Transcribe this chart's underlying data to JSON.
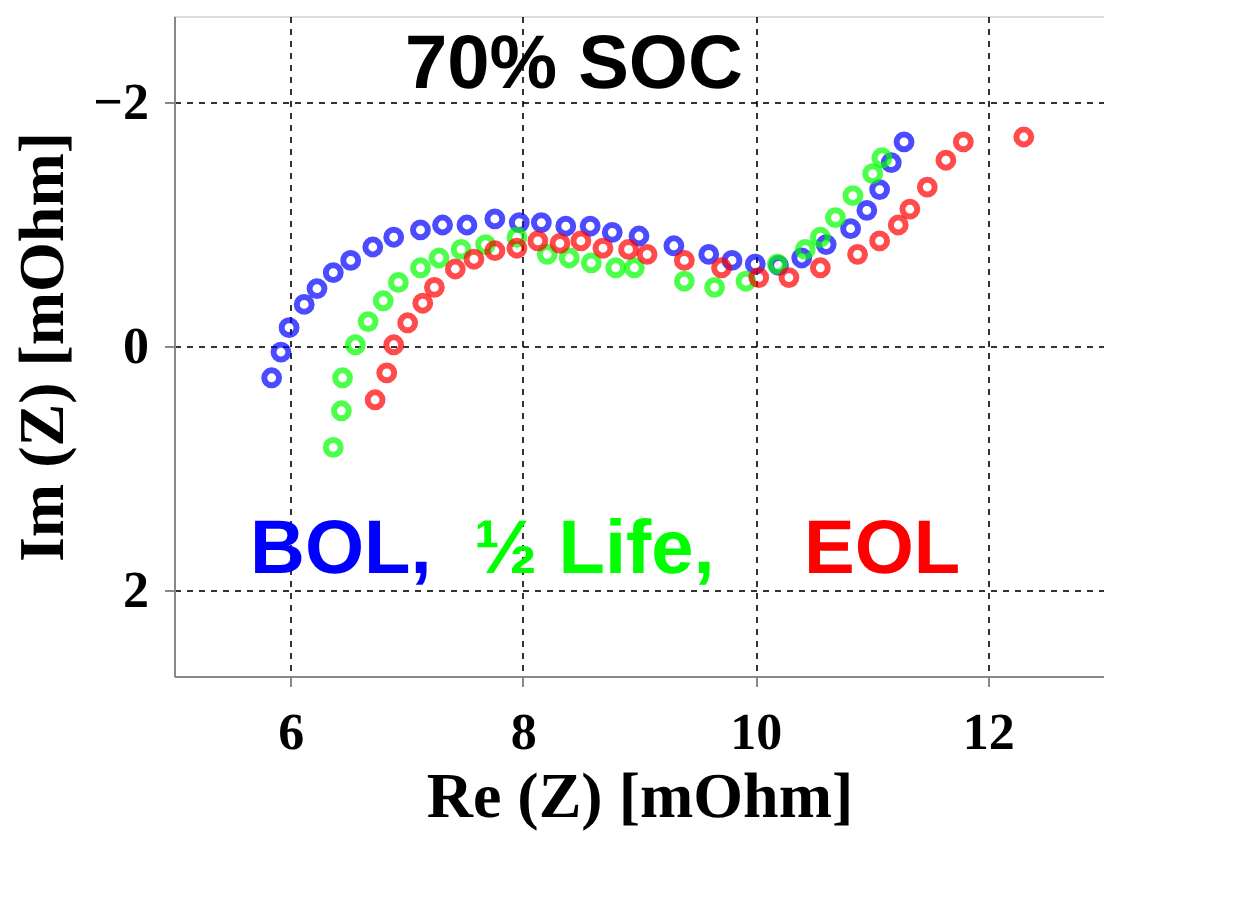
{
  "chart_data": {
    "type": "scatter",
    "title": "70% SOC",
    "xlabel": "Re (Z) [mOhm]",
    "ylabel": "Im (Z) [mOhm]",
    "xlim": [
      5,
      13
    ],
    "ylim": [
      2.7,
      -2.7
    ],
    "xticks": [
      6,
      8,
      10,
      12
    ],
    "yticks": [
      -2,
      0,
      2
    ],
    "grid": true,
    "marker": "circle",
    "series": [
      {
        "name": "BOL,",
        "color": "#0000ff",
        "x": [
          5.84,
          5.92,
          5.99,
          6.12,
          6.23,
          6.37,
          6.52,
          6.71,
          6.89,
          7.12,
          7.31,
          7.52,
          7.76,
          7.97,
          8.16,
          8.37,
          8.58,
          8.77,
          9.0,
          9.3,
          9.6,
          9.8,
          10.0,
          10.2,
          10.4,
          10.61,
          10.82,
          10.96,
          11.07,
          11.17,
          11.28
        ],
        "values": [
          0.26,
          0.05,
          -0.15,
          -0.34,
          -0.47,
          -0.6,
          -0.7,
          -0.81,
          -0.89,
          -0.95,
          -0.99,
          -0.99,
          -1.04,
          -1.01,
          -1.01,
          -0.98,
          -0.98,
          -0.93,
          -0.9,
          -0.82,
          -0.75,
          -0.7,
          -0.67,
          -0.66,
          -0.72,
          -0.83,
          -0.96,
          -1.11,
          -1.28,
          -1.5,
          -1.67
        ]
      },
      {
        "name": "½ Life,",
        "color": "#00ff00",
        "x": [
          6.37,
          6.44,
          6.45,
          6.56,
          6.67,
          6.8,
          6.93,
          7.12,
          7.28,
          7.47,
          7.68,
          7.95,
          8.21,
          8.4,
          8.59,
          8.8,
          8.96,
          9.39,
          9.65,
          9.92,
          10.19,
          10.43,
          10.56,
          10.69,
          10.84,
          11.01,
          11.09
        ],
        "values": [
          0.83,
          0.53,
          0.26,
          -0.01,
          -0.2,
          -0.37,
          -0.52,
          -0.64,
          -0.72,
          -0.79,
          -0.83,
          -0.89,
          -0.75,
          -0.72,
          -0.68,
          -0.64,
          -0.64,
          -0.53,
          -0.48,
          -0.53,
          -0.67,
          -0.79,
          -0.89,
          -1.05,
          -1.23,
          -1.41,
          -1.54
        ]
      },
      {
        "name": "EOL",
        "color": "#ff0000",
        "x": [
          6.73,
          6.83,
          6.89,
          7.01,
          7.14,
          7.24,
          7.42,
          7.58,
          7.76,
          7.95,
          8.13,
          8.32,
          8.5,
          8.69,
          8.91,
          9.07,
          9.39,
          9.71,
          10.03,
          10.29,
          10.56,
          10.88,
          11.07,
          11.23,
          11.33,
          11.48,
          11.64,
          11.79,
          12.31
        ],
        "values": [
          0.44,
          0.22,
          -0.01,
          -0.19,
          -0.35,
          -0.48,
          -0.63,
          -0.71,
          -0.78,
          -0.8,
          -0.86,
          -0.84,
          -0.86,
          -0.8,
          -0.79,
          -0.75,
          -0.7,
          -0.64,
          -0.56,
          -0.56,
          -0.64,
          -0.75,
          -0.86,
          -0.99,
          -1.12,
          -1.3,
          -1.52,
          -1.67,
          -1.71
        ]
      }
    ]
  }
}
